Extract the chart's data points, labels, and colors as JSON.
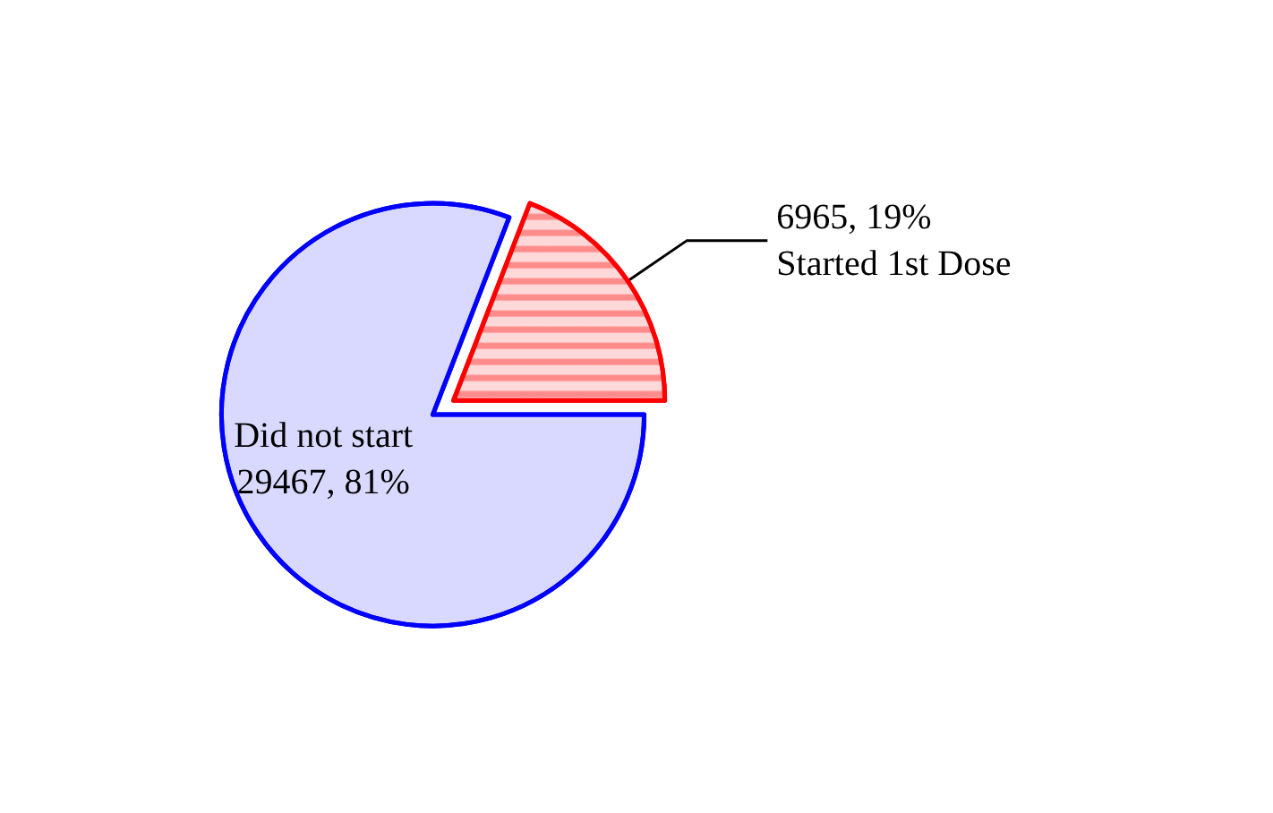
{
  "chart_data": {
    "type": "pie",
    "categories": [
      "Started 1st Dose",
      "Did not start"
    ],
    "values": [
      6965,
      29467
    ],
    "colors": [
      "#ff0000",
      "#0000ff"
    ],
    "value_labels": [
      "6965, 19%",
      "29467, 81%"
    ],
    "legend": false
  }
}
